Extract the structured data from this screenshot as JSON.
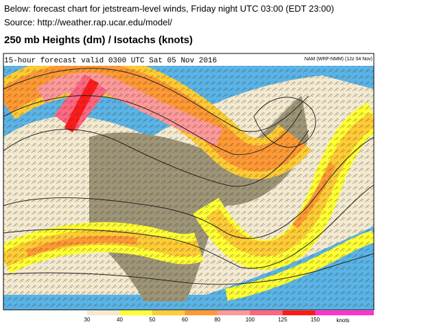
{
  "header": {
    "line1": "Below: forecast chart for jetstream-level winds, Friday night UTC 03:00 (EDT 23:00)",
    "line2": "Source: http://weather.rap.ucar.edu/model/"
  },
  "map": {
    "title": "250 mb Heights (dm) / Isotachs (knots)",
    "forecast_label": "15-hour forecast valid 0300 UTC Sat 05 Nov 2016",
    "model_label": "NAM (WRF-NMM) (12z 04 Nov)"
  },
  "legend": {
    "bins": [
      {
        "label": "30",
        "color": "#f4ead0"
      },
      {
        "label": "40",
        "color": "#ffff33"
      },
      {
        "label": "50",
        "color": "#ffcc33"
      },
      {
        "label": "60",
        "color": "#ff9933"
      },
      {
        "label": "80",
        "color": "#ff9999"
      },
      {
        "label": "100",
        "color": "#ff6680"
      },
      {
        "label": "125",
        "color": "#ff1a1a"
      },
      {
        "label": "150",
        "color": "#ff33cc"
      }
    ],
    "unit": "knots"
  }
}
